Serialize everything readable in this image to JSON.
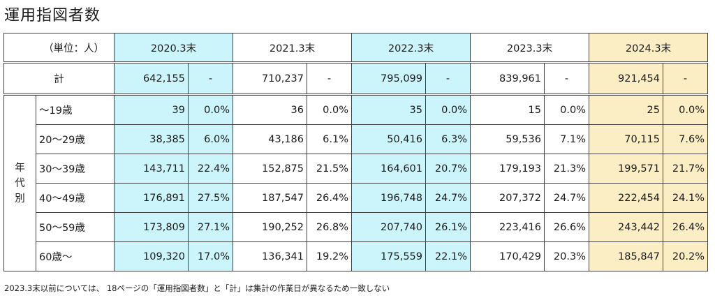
{
  "title": "運用指図者数",
  "unit_label": "（単位：人）",
  "years": [
    "2020.3末",
    "2021.3末",
    "2022.3末",
    "2023.3末",
    "2024.3末"
  ],
  "total": {
    "label": "計",
    "values": [
      "642,155",
      "-",
      "710,237",
      "-",
      "795,099",
      "-",
      "839,961",
      "-",
      "921,454",
      "-"
    ]
  },
  "group_label": [
    "年",
    "代",
    "別"
  ],
  "rows": [
    {
      "label": "〜19歳",
      "values": [
        "39",
        "0.0%",
        "36",
        "0.0%",
        "35",
        "0.0%",
        "15",
        "0.0%",
        "25",
        "0.0%"
      ]
    },
    {
      "label": "20〜29歳",
      "values": [
        "38,385",
        "6.0%",
        "43,186",
        "6.1%",
        "50,416",
        "6.3%",
        "59,536",
        "7.1%",
        "70,115",
        "7.6%"
      ]
    },
    {
      "label": "30〜39歳",
      "values": [
        "143,711",
        "22.4%",
        "152,875",
        "21.5%",
        "164,601",
        "20.7%",
        "179,193",
        "21.3%",
        "199,571",
        "21.7%"
      ]
    },
    {
      "label": "40〜49歳",
      "values": [
        "176,891",
        "27.5%",
        "187,547",
        "26.4%",
        "196,748",
        "24.7%",
        "207,372",
        "24.7%",
        "222,454",
        "24.1%"
      ]
    },
    {
      "label": "50〜59歳",
      "values": [
        "173,809",
        "27.1%",
        "190,252",
        "26.8%",
        "207,740",
        "26.1%",
        "223,416",
        "26.6%",
        "243,442",
        "26.4%"
      ]
    },
    {
      "label": "60歳〜",
      "values": [
        "109,320",
        "17.0%",
        "136,341",
        "19.2%",
        "175,559",
        "22.1%",
        "170,429",
        "20.3%",
        "185,847",
        "20.2%"
      ]
    }
  ],
  "footnote": "2023.3末以前については、 18ページの「運用指図者数」と「計」は集計の作業日が異なるため一致しない",
  "colors": {
    "highlight_blue": "#ccf5fb",
    "highlight_yellow": "#fbeec4",
    "border": "#404040"
  }
}
